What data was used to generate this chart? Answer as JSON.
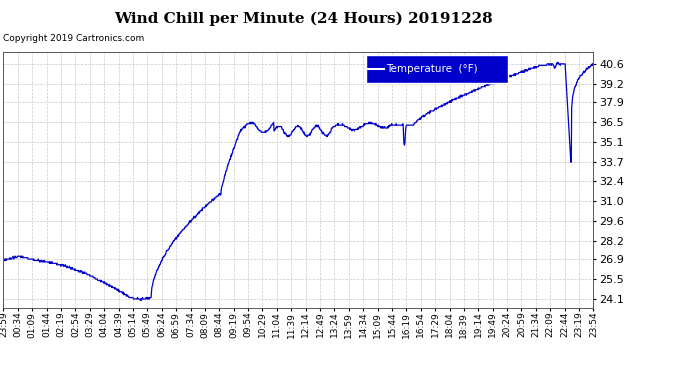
{
  "title": "Wind Chill per Minute (24 Hours) 20191228",
  "copyright": "Copyright 2019 Cartronics.com",
  "legend_label": "Temperature  (°F)",
  "line_color": "#0000cc",
  "background_color": "#ffffff",
  "grid_color": "#bbbbbb",
  "ylim": [
    23.5,
    41.4
  ],
  "yticks": [
    24.1,
    25.5,
    26.9,
    28.2,
    29.6,
    31.0,
    32.4,
    33.7,
    35.1,
    36.5,
    37.9,
    39.2,
    40.6
  ],
  "x_labels": [
    "23:59",
    "00:34",
    "01:09",
    "01:44",
    "02:19",
    "02:54",
    "03:29",
    "04:04",
    "04:39",
    "05:14",
    "05:49",
    "06:24",
    "06:59",
    "07:34",
    "08:09",
    "08:44",
    "09:19",
    "09:54",
    "10:29",
    "11:04",
    "11:39",
    "12:14",
    "12:49",
    "13:24",
    "13:59",
    "14:34",
    "15:09",
    "15:44",
    "16:19",
    "16:54",
    "17:29",
    "18:04",
    "18:39",
    "19:14",
    "19:49",
    "20:24",
    "20:59",
    "21:34",
    "22:09",
    "22:44",
    "23:19",
    "23:54"
  ],
  "n_points": 1440,
  "figsize": [
    6.9,
    3.75
  ],
  "dpi": 100
}
